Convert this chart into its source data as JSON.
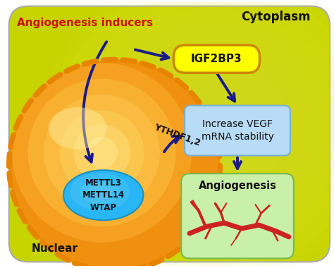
{
  "bg_outer": "#c8d400",
  "bg_gradient_center": "#e8f060",
  "title_cytoplasm": "Cytoplasm",
  "title_nuclear": "Nuclear",
  "label_angiogenesis_inducers": "Angiogenesis inducers",
  "label_angiogenesis_inducers_color": "#cc1100",
  "label_igf2bp3": "IGF2BP3",
  "label_vegf": "Increase VEGF\nmRNA stability",
  "label_angiogenesis": "Angiogenesis",
  "label_mettl": "METTL3\nMETTL14\nWTAP",
  "label_ythdf": "YTHDF1,2",
  "arrow_color": "#1a1a8c",
  "nuclear_fill_outer": "#f5a010",
  "nuclear_fill_inner": "#fde070",
  "nuclear_border_color": "#e88500",
  "mettl_fill_color": "#29b6f6",
  "mettl_border_color": "#1a90c0",
  "igf2bp3_box_fill": "#ffff00",
  "igf2bp3_box_border": "#cc8800",
  "vegf_box_fill": "#b8dcf5",
  "vegf_box_border": "#7ab0d0",
  "angio_box_fill": "#c8f0a8",
  "angio_box_border": "#78b850",
  "vessel_color": "#cc2222",
  "vessel_shadow": "#994444",
  "outer_border": "#aaaaaa",
  "white_bg": "#ffffff"
}
